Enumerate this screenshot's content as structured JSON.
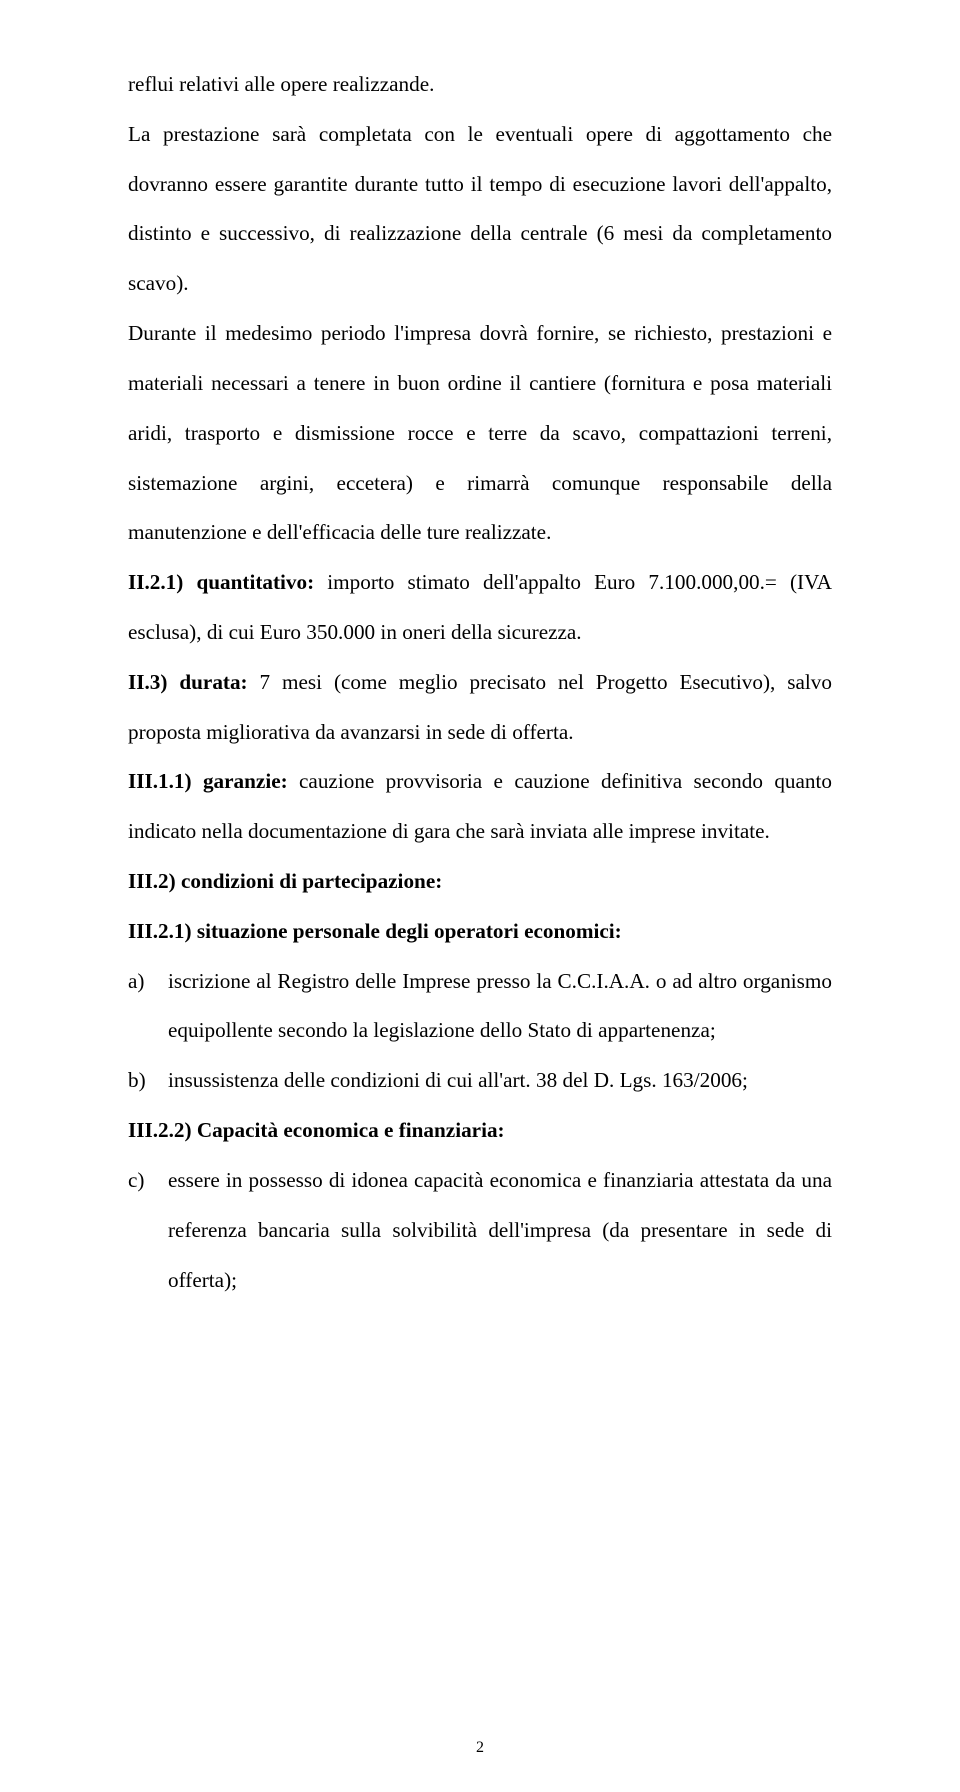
{
  "p1": "reflui relativi alle opere realizzande.",
  "p2": "La prestazione sarà completata con le eventuali opere di aggottamento che dovranno essere garantite durante tutto il tempo di esecuzione lavori dell'appalto, distinto e successivo, di realizzazione della centrale (6 mesi da completamento scavo).",
  "p3": "Durante il medesimo periodo l'impresa dovrà fornire, se richiesto, prestazioni e materiali necessari a tenere in buon ordine il cantiere (fornitura e posa materiali aridi, trasporto e dismissione rocce e terre da scavo, compattazioni terreni, sistemazione argini, eccetera) e rimarrà comunque responsabile della manutenzione e dell'efficacia delle ture realizzate.",
  "p4a": "II.2.1) quantitativo: ",
  "p4b": "importo stimato dell'appalto Euro 7.100.000,00.= (IVA esclusa), di cui Euro 350.000 in oneri della sicurezza.",
  "p5a": "II.3) durata: ",
  "p5b": "7 mesi (come meglio precisato nel Progetto Esecutivo), salvo proposta migliorativa da avanzarsi in sede di offerta.",
  "p6a": "III.1.1) garanzie: ",
  "p6b": "cauzione provvisoria e cauzione definitiva secondo quanto indicato nella documentazione di gara che sarà inviata alle imprese invitate.",
  "p7": "III.2) condizioni di partecipazione:",
  "p8": "III.2.1) situazione personale degli operatori economici:",
  "la_label": "a)",
  "la_body": "iscrizione al Registro delle Imprese presso la C.C.I.A.A. o ad altro organismo equipollente secondo la legislazione dello Stato di appartenenza;",
  "lb_label": "b)",
  "lb_body": "insussistenza delle condizioni di cui all'art. 38 del D. Lgs. 163/2006;",
  "p9": "III.2.2) Capacità economica e finanziaria:",
  "lc_label": "c)",
  "lc_body": "essere in possesso di idonea capacità economica e finanziaria attestata da una referenza bancaria sulla solvibilità dell'impresa (da presentare in sede di offerta);",
  "page_number": "2"
}
